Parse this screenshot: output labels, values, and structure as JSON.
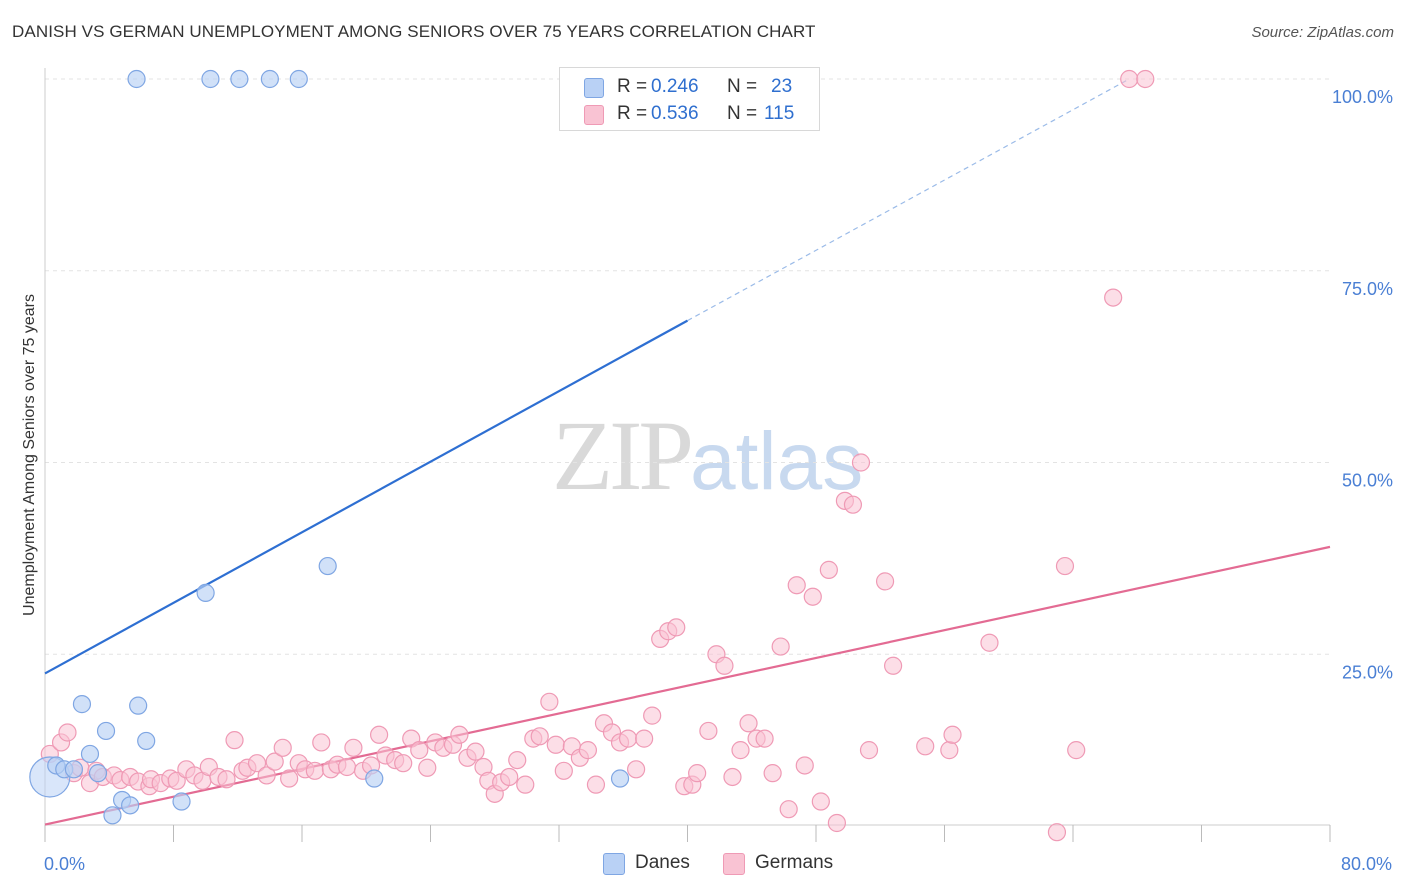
{
  "header": {
    "title": "DANISH VS GERMAN UNEMPLOYMENT AMONG SENIORS OVER 75 YEARS CORRELATION CHART",
    "source": "Source: ZipAtlas.com"
  },
  "watermark": {
    "part1": "ZIP",
    "part2": "atlas"
  },
  "colors": {
    "danes_fill": "#b9d1f5",
    "danes_stroke": "#7fa6e3",
    "danes_line": "#2e6fd2",
    "germans_fill": "#f9c3d3",
    "germans_stroke": "#ef9ab5",
    "germans_line": "#e36b93",
    "tick_text": "#4a7fd4",
    "grid": "#e3e3e3"
  },
  "legend": {
    "danes": {
      "r_label": "R =",
      "r_value": "0.246",
      "n_label": "N =",
      "n_value": "23"
    },
    "germans": {
      "r_label": "R =",
      "r_value": "0.536",
      "n_label": "N =",
      "n_value": "115"
    }
  },
  "bottom_legend": {
    "danes": "Danes",
    "germans": "Germans"
  },
  "chart_data": {
    "type": "scatter",
    "title": "DANISH VS GERMAN UNEMPLOYMENT AMONG SENIORS OVER 75 YEARS CORRELATION CHART",
    "xlabel": "",
    "ylabel": "Unemployment Among Seniors over 75 years",
    "xlim": [
      0,
      80
    ],
    "ylim": [
      0,
      100
    ],
    "x_tick_labels": [
      "0.0%",
      "80.0%"
    ],
    "y_ticks": [
      25,
      50,
      75,
      100
    ],
    "y_tick_labels": [
      "25.0%",
      "50.0%",
      "75.0%",
      "100.0%"
    ],
    "grid": true,
    "legend_position": "top-center",
    "series": [
      {
        "name": "Danes",
        "r": 0.246,
        "n": 23,
        "trend": {
          "x0": 0,
          "y0": 22.5,
          "x1": 40,
          "y1": 68.5,
          "dashed_to": [
            67.5,
            100
          ]
        },
        "points": [
          [
            0.3,
            9.0,
            "big"
          ],
          [
            0.7,
            10.5
          ],
          [
            1.2,
            10.0
          ],
          [
            1.8,
            10.0
          ],
          [
            2.3,
            18.5
          ],
          [
            2.8,
            12.0
          ],
          [
            3.3,
            9.5
          ],
          [
            3.8,
            15.0
          ],
          [
            4.2,
            4.0
          ],
          [
            4.8,
            6.0
          ],
          [
            5.3,
            5.3
          ],
          [
            5.8,
            18.3
          ],
          [
            6.3,
            13.7
          ],
          [
            8.5,
            5.8
          ],
          [
            10.0,
            33.0
          ],
          [
            17.6,
            36.5
          ],
          [
            20.5,
            8.8
          ],
          [
            35.8,
            8.8
          ],
          [
            5.7,
            100
          ],
          [
            10.3,
            100
          ],
          [
            12.1,
            100
          ],
          [
            14.0,
            100
          ],
          [
            15.8,
            100
          ]
        ]
      },
      {
        "name": "Germans",
        "r": 0.536,
        "n": 115,
        "trend": {
          "x0": 0,
          "y0": 2.8,
          "x1": 80,
          "y1": 39.0
        },
        "points": [
          [
            0.3,
            12
          ],
          [
            1.0,
            13.5
          ],
          [
            1.4,
            14.8
          ],
          [
            1.8,
            9.5
          ],
          [
            2.2,
            10.2
          ],
          [
            2.8,
            8.2
          ],
          [
            3.2,
            9.8
          ],
          [
            3.6,
            9.0
          ],
          [
            4.3,
            9.2
          ],
          [
            4.7,
            8.6
          ],
          [
            5.3,
            9.0
          ],
          [
            5.8,
            8.4
          ],
          [
            6.5,
            7.8
          ],
          [
            6.6,
            8.7
          ],
          [
            7.2,
            8.2
          ],
          [
            7.8,
            8.8
          ],
          [
            8.2,
            8.5
          ],
          [
            8.8,
            10.0
          ],
          [
            9.3,
            9.2
          ],
          [
            9.8,
            8.5
          ],
          [
            10.2,
            10.3
          ],
          [
            10.8,
            9.0
          ],
          [
            11.3,
            8.7
          ],
          [
            11.8,
            13.8
          ],
          [
            12.3,
            9.8
          ],
          [
            12.6,
            10.2
          ],
          [
            13.2,
            10.8
          ],
          [
            13.8,
            9.2
          ],
          [
            14.3,
            11.0
          ],
          [
            14.8,
            12.8
          ],
          [
            15.2,
            8.8
          ],
          [
            15.8,
            10.8
          ],
          [
            16.2,
            10.0
          ],
          [
            16.8,
            9.8
          ],
          [
            17.2,
            13.5
          ],
          [
            17.8,
            10.0
          ],
          [
            18.2,
            10.6
          ],
          [
            18.8,
            10.3
          ],
          [
            19.2,
            12.8
          ],
          [
            19.8,
            9.8
          ],
          [
            20.3,
            10.5
          ],
          [
            20.8,
            14.5
          ],
          [
            21.2,
            11.8
          ],
          [
            21.8,
            11.2
          ],
          [
            22.3,
            10.8
          ],
          [
            22.8,
            14.0
          ],
          [
            23.3,
            12.5
          ],
          [
            23.8,
            10.2
          ],
          [
            24.3,
            13.5
          ],
          [
            24.8,
            12.8
          ],
          [
            25.4,
            13.2
          ],
          [
            25.8,
            14.5
          ],
          [
            26.3,
            11.5
          ],
          [
            26.8,
            12.3
          ],
          [
            27.3,
            10.3
          ],
          [
            27.6,
            8.5
          ],
          [
            28.0,
            6.8
          ],
          [
            28.4,
            8.3
          ],
          [
            28.9,
            9.0
          ],
          [
            29.4,
            11.2
          ],
          [
            29.9,
            8.0
          ],
          [
            30.4,
            14.0
          ],
          [
            30.8,
            14.3
          ],
          [
            31.4,
            18.8
          ],
          [
            31.8,
            13.2
          ],
          [
            32.3,
            9.8
          ],
          [
            32.8,
            13.0
          ],
          [
            33.3,
            11.5
          ],
          [
            33.8,
            12.5
          ],
          [
            34.3,
            8.0
          ],
          [
            34.8,
            16.0
          ],
          [
            35.3,
            14.8
          ],
          [
            35.8,
            13.5
          ],
          [
            36.3,
            14.0
          ],
          [
            36.8,
            10.0
          ],
          [
            37.3,
            14.0
          ],
          [
            37.8,
            17.0
          ],
          [
            38.3,
            27.0
          ],
          [
            38.8,
            28.0
          ],
          [
            39.3,
            28.5
          ],
          [
            39.8,
            7.8
          ],
          [
            40.3,
            8.0
          ],
          [
            40.6,
            9.5
          ],
          [
            41.3,
            15.0
          ],
          [
            41.8,
            25.0
          ],
          [
            42.3,
            23.5
          ],
          [
            42.8,
            9.0
          ],
          [
            43.3,
            12.5
          ],
          [
            43.8,
            16.0
          ],
          [
            44.3,
            14.0
          ],
          [
            44.8,
            14.0
          ],
          [
            45.3,
            9.5
          ],
          [
            45.8,
            26.0
          ],
          [
            46.3,
            4.8
          ],
          [
            46.8,
            34.0
          ],
          [
            47.3,
            10.5
          ],
          [
            47.8,
            32.5
          ],
          [
            48.3,
            5.8
          ],
          [
            48.8,
            36.0
          ],
          [
            49.3,
            3.0
          ],
          [
            49.8,
            45.0
          ],
          [
            50.3,
            44.5
          ],
          [
            50.8,
            50.0
          ],
          [
            51.3,
            12.5
          ],
          [
            52.3,
            34.5
          ],
          [
            52.8,
            23.5
          ],
          [
            54.8,
            13.0
          ],
          [
            56.3,
            12.5
          ],
          [
            56.5,
            14.5
          ],
          [
            58.8,
            26.5
          ],
          [
            63.0,
            1.8
          ],
          [
            63.5,
            36.5
          ],
          [
            64.2,
            12.5
          ],
          [
            66.5,
            71.5
          ],
          [
            67.5,
            100
          ],
          [
            68.5,
            100
          ]
        ]
      }
    ]
  }
}
